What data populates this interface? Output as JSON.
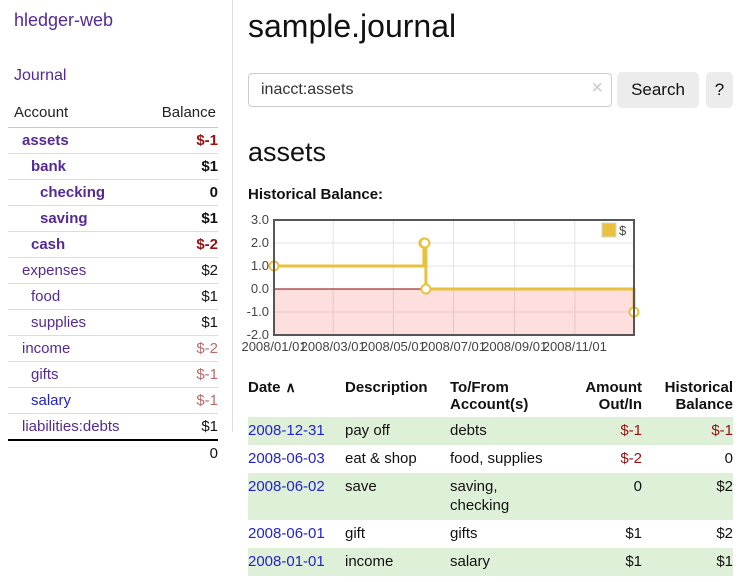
{
  "sidebar": {
    "brand": "hledger-web",
    "nav_journal": "Journal",
    "accounts_table": {
      "headers": {
        "account": "Account",
        "balance": "Balance"
      },
      "rows": [
        {
          "name": "assets",
          "depth": 0,
          "emph": true,
          "balance": "$-1"
        },
        {
          "name": "bank",
          "depth": 1,
          "emph": true,
          "balance": "$1"
        },
        {
          "name": "checking",
          "depth": 2,
          "emph": true,
          "balance": "0"
        },
        {
          "name": "saving",
          "depth": 2,
          "emph": true,
          "balance": "$1"
        },
        {
          "name": "cash",
          "depth": 1,
          "emph": true,
          "balance": "$-2"
        },
        {
          "name": "expenses",
          "depth": 0,
          "emph": false,
          "balance": "$2"
        },
        {
          "name": "food",
          "depth": 1,
          "emph": false,
          "balance": "$1"
        },
        {
          "name": "supplies",
          "depth": 1,
          "emph": false,
          "balance": "$1"
        },
        {
          "name": "income",
          "depth": 0,
          "emph": false,
          "balance": "$-2"
        },
        {
          "name": "gifts",
          "depth": 1,
          "emph": false,
          "balance": "$-1"
        },
        {
          "name": "salary",
          "depth": 1,
          "emph": false,
          "balance": "$-1",
          "unvisited": true
        },
        {
          "name": "liabilities:debts",
          "depth": 0,
          "emph": false,
          "balance": "$1"
        }
      ],
      "total": "0"
    }
  },
  "header": {
    "title": "sample.journal"
  },
  "search": {
    "value": "inacct:assets",
    "clear_icon": "×",
    "button_label": "Search",
    "help_label": "?"
  },
  "account_page": {
    "heading": "assets",
    "chart_label": "Historical Balance:"
  },
  "chart_data": {
    "type": "line",
    "title": "Historical Balance",
    "step": true,
    "ylim": [
      -2,
      3
    ],
    "x_range": [
      "2008-01-01",
      "2008-12-31"
    ],
    "y_ticks": [
      {
        "v": 3,
        "label": "3.0"
      },
      {
        "v": 2,
        "label": "2.0"
      },
      {
        "v": 1,
        "label": "1.0"
      },
      {
        "v": 0,
        "label": "0.0"
      },
      {
        "v": -1,
        "label": "-1.0"
      },
      {
        "v": -2,
        "label": "-2.0"
      }
    ],
    "x_ticks": [
      {
        "date": "2008-01-01",
        "label": "2008/01/01"
      },
      {
        "date": "2008-03-01",
        "label": "2008/03/01"
      },
      {
        "date": "2008-05-01",
        "label": "2008/05/01"
      },
      {
        "date": "2008-07-01",
        "label": "2008/07/01"
      },
      {
        "date": "2008-09-01",
        "label": "2008/09/01"
      },
      {
        "date": "2008-11-01",
        "label": "2008/11/01"
      }
    ],
    "series": [
      {
        "name": "$",
        "color": "#e8c23e",
        "points": [
          [
            "2008-01-01",
            1
          ],
          [
            "2008-06-01",
            2
          ],
          [
            "2008-06-02",
            2
          ],
          [
            "2008-06-03",
            0
          ],
          [
            "2008-12-31",
            -1
          ]
        ]
      }
    ],
    "legend": {
      "label": "$",
      "position": "top-right"
    },
    "grid_color": "#e3e3e3",
    "border_color": "#565656",
    "zero_line_color": "#8b0000",
    "negative_region_color": "rgba(255,0,0,0.13)"
  },
  "transactions": {
    "headers": {
      "date": "Date",
      "sort_icon": "∧",
      "description": "Description",
      "accounts": "To/From Account(s)",
      "amount": "Amount Out/In",
      "balance": "Historical Balance"
    },
    "rows": [
      {
        "date": "2008-12-31",
        "description": "pay off",
        "accounts": "debts",
        "amount": "$-1",
        "balance": "$-1"
      },
      {
        "date": "2008-06-03",
        "description": "eat & shop",
        "accounts": "food, supplies",
        "amount": "$-2",
        "balance": "0"
      },
      {
        "date": "2008-06-02",
        "description": "save",
        "accounts": "saving, checking",
        "amount": "0",
        "balance": "$2"
      },
      {
        "date": "2008-06-01",
        "description": "gift",
        "accounts": "gifts",
        "amount": "$1",
        "balance": "$2"
      },
      {
        "date": "2008-01-01",
        "description": "income",
        "accounts": "salary",
        "amount": "$1",
        "balance": "$1"
      }
    ],
    "stripe_color": "#dff0d8"
  }
}
